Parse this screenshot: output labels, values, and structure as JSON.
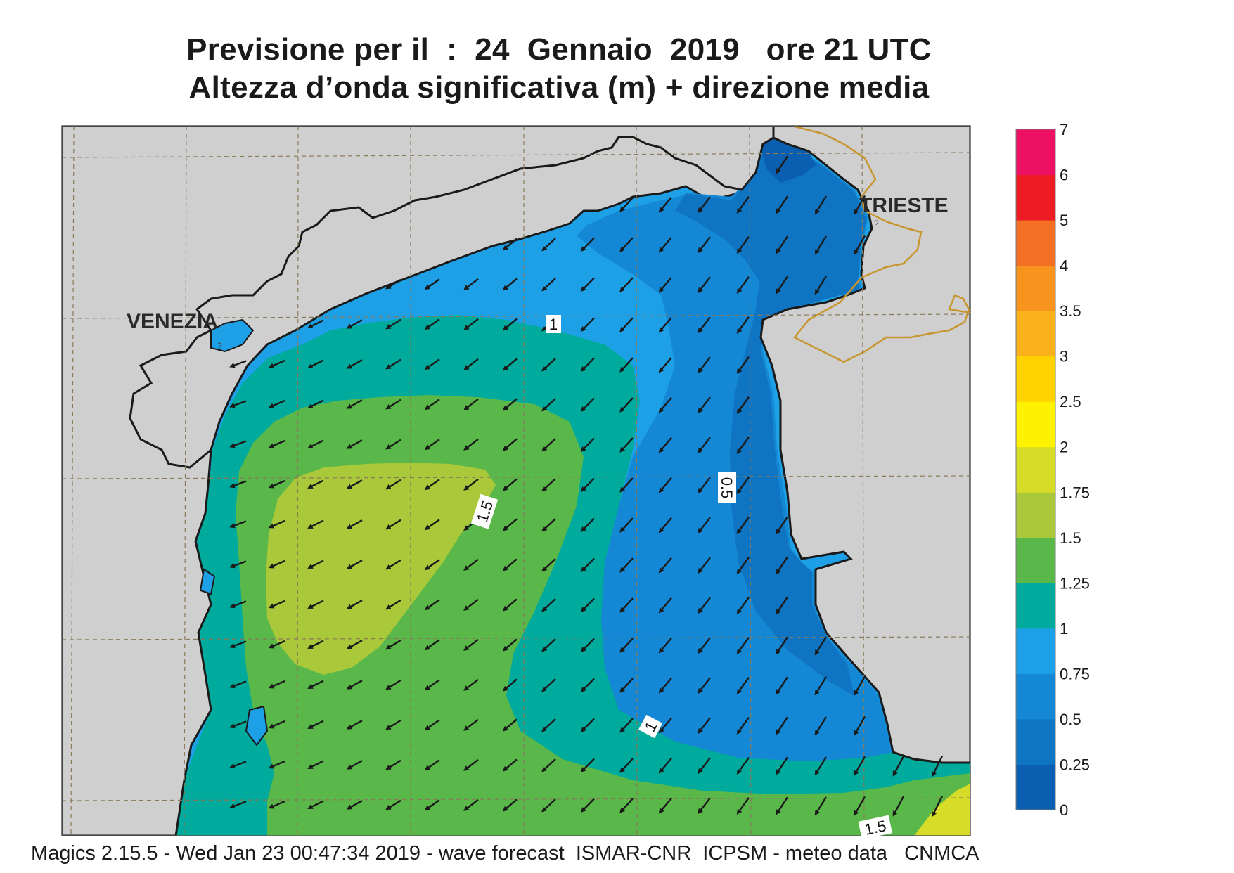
{
  "title": {
    "line1": "Previsione per il  :  24  Gennaio  2019   ore 21 UTC",
    "line2": "Altezza d’onda significativa (m) + direzione media"
  },
  "footer": "Magics 2.15.5 - Wed Jan 23 00:47:34 2019 - wave forecast  ISMAR-CNR  ICPSM - meteo data   CNMCA",
  "map": {
    "cities": [
      {
        "name": "VENEZIA"
      },
      {
        "name": "TRIESTE"
      }
    ],
    "contour_labels": [
      "1",
      "1.5",
      "0.5",
      "1",
      "1.5"
    ],
    "colors": {
      "land": "#cfcfcf",
      "coast": "#1a1a1a",
      "border": "#c8962e",
      "grid": "#8a7a5a",
      "arrow": "#1a1a1a"
    },
    "mean_wave_direction": "from NE (arrows pointing SW)"
  },
  "colorbar": {
    "labels": [
      "0",
      "0.25",
      "0.5",
      "0.75",
      "1",
      "1.25",
      "1.5",
      "1.75",
      "2",
      "2.5",
      "3",
      "3.5",
      "4",
      "5",
      "6",
      "7"
    ],
    "colors": [
      "#0a5fb0",
      "#0f74c1",
      "#1488d4",
      "#1ea0e6",
      "#00aa9c",
      "#5ab84a",
      "#a9c83a",
      "#d7dc28",
      "#fff200",
      "#ffd200",
      "#fbb11b",
      "#f7941d",
      "#f26f23",
      "#ed1c24",
      "#ec1163"
    ]
  }
}
